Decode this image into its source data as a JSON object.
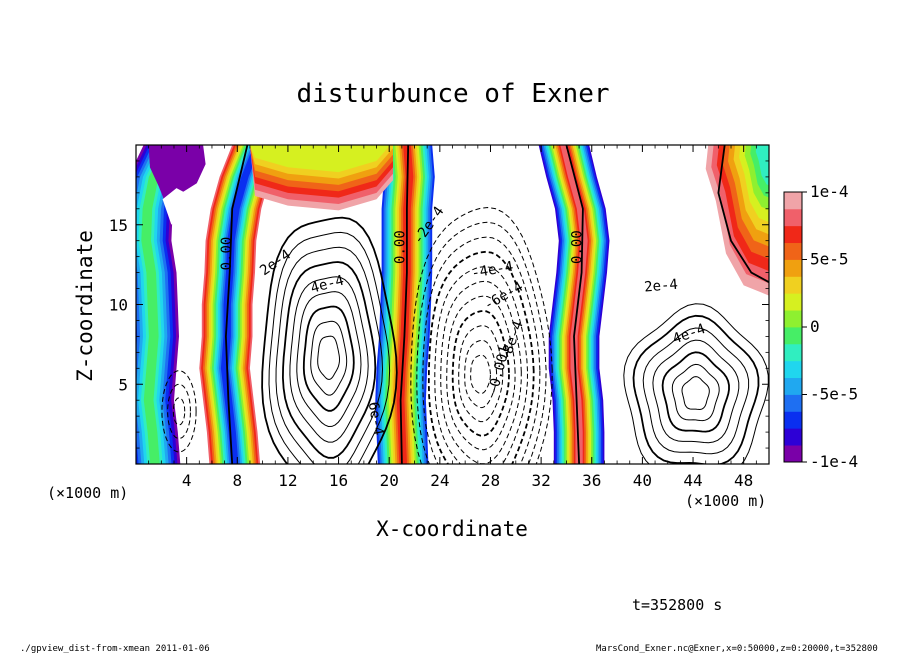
{
  "chart_data": {
    "type": "heatmap",
    "title": "disturbunce of Exner",
    "xlabel": "X-coordinate",
    "ylabel": "Z-coordinate",
    "x_unit": "(×1000 m)",
    "z_unit": "(×1000 m)",
    "xlim": [
      0,
      50
    ],
    "ylim": [
      0,
      20
    ],
    "x_ticks": [
      4,
      8,
      12,
      16,
      20,
      24,
      28,
      32,
      36,
      40,
      44,
      48
    ],
    "x_tick_labels": [
      "4",
      "8",
      "12",
      "16",
      "20",
      "24",
      "28",
      "32",
      "36",
      "40",
      "44",
      "48"
    ],
    "y_ticks": [
      5,
      10,
      15
    ],
    "y_tick_labels": [
      "5",
      "10",
      "15"
    ],
    "colorbar": {
      "range": [
        -0.0001,
        0.0001
      ],
      "tick_values": [
        0.0001,
        5e-05,
        0,
        -5e-05,
        -0.0001
      ],
      "tick_labels": [
        "1e-4",
        "5e-5",
        "0",
        "-5e-5",
        "-1e-4"
      ],
      "colors": [
        "#7a00a8",
        "#2d00d6",
        "#0a2ff0",
        "#1e6ff2",
        "#20a8f0",
        "#20d6ee",
        "#30eec0",
        "#46ee66",
        "#8ef030",
        "#d6f020",
        "#f0d020",
        "#f0a010",
        "#f06418",
        "#f02818",
        "#f0606a",
        "#f0a4a8"
      ]
    },
    "contour_labels": [
      "0.00",
      "0.00",
      "0.00",
      "2e-4",
      "4e-4",
      "6e-4",
      "-2e-4",
      "-4e-4",
      "-6e-4",
      "-8e-4",
      "-0.001",
      "2e-4",
      "4e-4"
    ],
    "fields": {
      "positive_highs": [
        {
          "x": 15.2,
          "z": 7.0,
          "peak": 0.00085
        },
        {
          "x": 44.2,
          "z": 4.4,
          "peak": 0.0006
        }
      ],
      "negative_lows": [
        {
          "x": 27.2,
          "z": 5.6,
          "peak": -0.00105
        },
        {
          "x": 3.4,
          "z": 3.3,
          "peak": -0.0004
        }
      ],
      "colored_bands_near_zero": [
        {
          "x_center": 1.2,
          "z_bottom": 0,
          "z_top": 20
        },
        {
          "x_center": 7.6,
          "z_bottom": 0,
          "z_top": 20
        },
        {
          "x_center": 21.2,
          "z_bottom": 0,
          "z_top": 20
        },
        {
          "x_center": 35.2,
          "z_bottom": 0,
          "z_top": 20
        },
        {
          "x_center": 46.5,
          "z_bottom": 10,
          "z_top": 20
        }
      ]
    },
    "time_label": "t=352800 s",
    "footer_left": "./gpview_dist-from-xmean  2011-01-06",
    "footer_right": "MarsCond_Exner.nc@Exner,x=0:50000,z=0:20000,t=352800",
    "grid": false
  }
}
